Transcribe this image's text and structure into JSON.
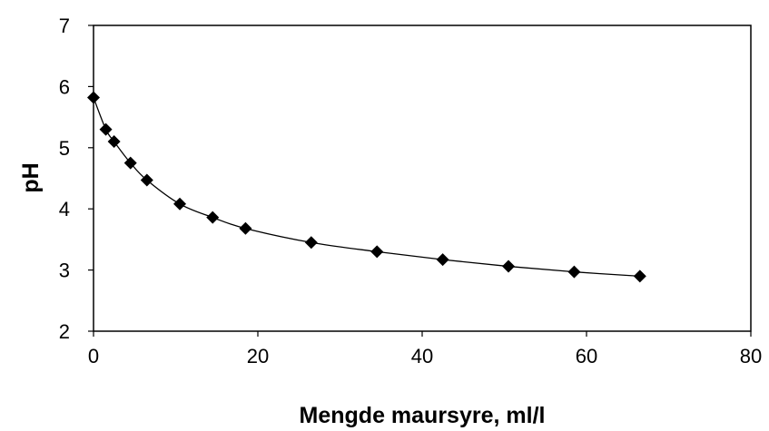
{
  "chart_data": {
    "type": "line",
    "title": "",
    "xlabel": "Mengde maursyre, ml/l",
    "ylabel": "pH",
    "xlim": [
      0,
      80
    ],
    "ylim": [
      2,
      7
    ],
    "x_ticks": [
      "0",
      "20",
      "40",
      "60",
      "80"
    ],
    "y_ticks": [
      "2",
      "3",
      "4",
      "5",
      "6",
      "7"
    ],
    "grid": false,
    "legend": "none",
    "marker": "diamond",
    "series": [
      {
        "x": [
          0,
          1.5,
          2.5,
          4.5,
          6.5,
          10.5,
          14.5,
          18.5,
          26.5,
          34.5,
          42.5,
          50.5,
          58.5,
          66.5
        ],
        "y": [
          5.82,
          5.3,
          5.1,
          4.75,
          4.47,
          4.08,
          3.86,
          3.68,
          3.45,
          3.3,
          3.17,
          3.06,
          2.97,
          2.9
        ]
      }
    ],
    "colors": {
      "line": "#000000",
      "marker": "#000000",
      "frame": "#000000",
      "background": "#ffffff"
    }
  }
}
